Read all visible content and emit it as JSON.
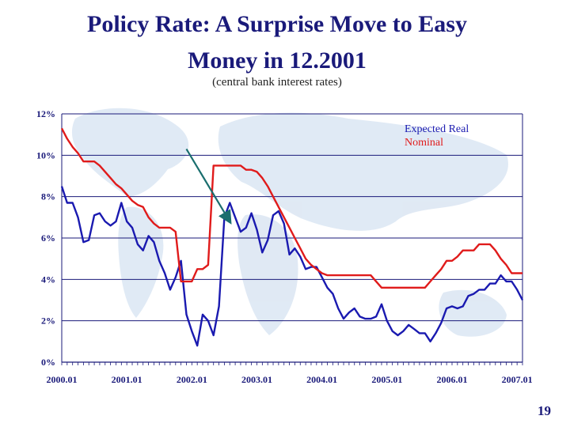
{
  "slide": {
    "title_line1": "Policy Rate: A Surprise Move to Easy",
    "title_line2": "Money in 12.2001",
    "subtitle": "(central bank interest rates)",
    "page_number": "19"
  },
  "chart_data": {
    "type": "line",
    "title": "",
    "xlabel": "",
    "ylabel": "",
    "ylim": [
      0,
      12
    ],
    "xlim": [
      0,
      85
    ],
    "y_ticks": [
      "0%",
      "2%",
      "4%",
      "6%",
      "8%",
      "10%",
      "12%"
    ],
    "y_tick_values": [
      0,
      2,
      4,
      6,
      8,
      10,
      12
    ],
    "x_ticks": [
      "2000.01",
      "2001.01",
      "2002.01",
      "2003.01",
      "2004.01",
      "2005.01",
      "2006.01",
      "2007.01"
    ],
    "x_tick_values": [
      0,
      12,
      24,
      36,
      48,
      60,
      72,
      84
    ],
    "grid": "horizontal",
    "legend_position": "top-right",
    "series": [
      {
        "name": "Expected Real",
        "color": "#1a1ab0",
        "x": [
          0,
          1,
          2,
          3,
          4,
          5,
          6,
          7,
          8,
          9,
          10,
          11,
          12,
          13,
          14,
          15,
          16,
          17,
          18,
          19,
          20,
          21,
          22,
          23,
          24,
          25,
          26,
          27,
          28,
          29,
          30,
          31,
          32,
          33,
          34,
          35,
          36,
          37,
          38,
          39,
          40,
          41,
          42,
          43,
          44,
          45,
          46,
          47,
          48,
          49,
          50,
          51,
          52,
          53,
          54,
          55,
          56,
          57,
          58,
          59,
          60,
          61,
          62,
          63,
          64,
          65,
          66,
          67,
          68,
          69,
          70,
          71,
          72,
          73,
          74,
          75,
          76,
          77,
          78,
          79,
          80,
          81,
          82,
          83,
          84,
          85
        ],
        "values": [
          8.5,
          7.7,
          7.7,
          7.0,
          5.8,
          5.9,
          7.1,
          7.2,
          6.8,
          6.6,
          6.8,
          7.7,
          6.8,
          6.5,
          5.7,
          5.4,
          6.1,
          5.8,
          4.9,
          4.3,
          3.5,
          4.1,
          4.9,
          2.3,
          1.5,
          0.8,
          2.3,
          2.0,
          1.3,
          2.7,
          7.0,
          7.7,
          7.0,
          6.3,
          6.5,
          7.2,
          6.4,
          5.3,
          5.9,
          7.1,
          7.3,
          6.7,
          5.2,
          5.5,
          5.1,
          4.5,
          4.6,
          4.6,
          4.1,
          3.6,
          3.3,
          2.6,
          2.1,
          2.4,
          2.6,
          2.2,
          2.1,
          2.1,
          2.2,
          2.8,
          2.0,
          1.5,
          1.3,
          1.5,
          1.8,
          1.6,
          1.4,
          1.4,
          1.0,
          1.4,
          1.9,
          2.6,
          2.7,
          2.6,
          2.7,
          3.2,
          3.3,
          3.5,
          3.5,
          3.8,
          3.8,
          4.2,
          3.9,
          3.9,
          3.5,
          3.0
        ]
      },
      {
        "name": "Nominal",
        "color": "#e01b1b",
        "x": [
          0,
          1,
          2,
          3,
          4,
          5,
          6,
          7,
          8,
          9,
          10,
          11,
          12,
          13,
          14,
          15,
          16,
          17,
          18,
          19,
          20,
          21,
          22,
          23,
          24,
          25,
          26,
          27,
          28,
          29,
          30,
          31,
          32,
          33,
          34,
          35,
          36,
          37,
          38,
          39,
          40,
          41,
          42,
          43,
          44,
          45,
          46,
          47,
          48,
          49,
          50,
          51,
          52,
          53,
          54,
          55,
          56,
          57,
          58,
          59,
          60,
          61,
          62,
          63,
          64,
          65,
          66,
          67,
          68,
          69,
          70,
          71,
          72,
          73,
          74,
          75,
          76,
          77,
          78,
          79,
          80,
          81,
          82,
          83,
          84,
          85
        ],
        "values": [
          11.3,
          10.8,
          10.4,
          10.1,
          9.7,
          9.7,
          9.7,
          9.5,
          9.2,
          8.9,
          8.6,
          8.4,
          8.1,
          7.8,
          7.6,
          7.5,
          7.0,
          6.7,
          6.5,
          6.5,
          6.5,
          6.3,
          3.9,
          3.9,
          3.9,
          4.5,
          4.5,
          4.7,
          9.5,
          9.5,
          9.5,
          9.5,
          9.5,
          9.5,
          9.3,
          9.3,
          9.2,
          8.9,
          8.5,
          8.0,
          7.5,
          7.0,
          6.5,
          6.0,
          5.5,
          5.0,
          4.7,
          4.5,
          4.3,
          4.2,
          4.2,
          4.2,
          4.2,
          4.2,
          4.2,
          4.2,
          4.2,
          4.2,
          3.9,
          3.6,
          3.6,
          3.6,
          3.6,
          3.6,
          3.6,
          3.6,
          3.6,
          3.6,
          3.9,
          4.2,
          4.5,
          4.9,
          4.9,
          5.1,
          5.4,
          5.4,
          5.4,
          5.7,
          5.7,
          5.7,
          5.4,
          5.0,
          4.7,
          4.3,
          4.3,
          4.3
        ]
      }
    ],
    "annotations": [
      {
        "type": "arrow",
        "color": "#1a6e6e",
        "x_from": 23,
        "y_from": 10.3,
        "x_to": 31,
        "y_to": 6.8
      }
    ]
  },
  "colors": {
    "title": "#1a1a7a",
    "axis_labels": "#1a1a7a",
    "gridline": "#1a1a7a",
    "map_background": "#dbe6f3"
  }
}
